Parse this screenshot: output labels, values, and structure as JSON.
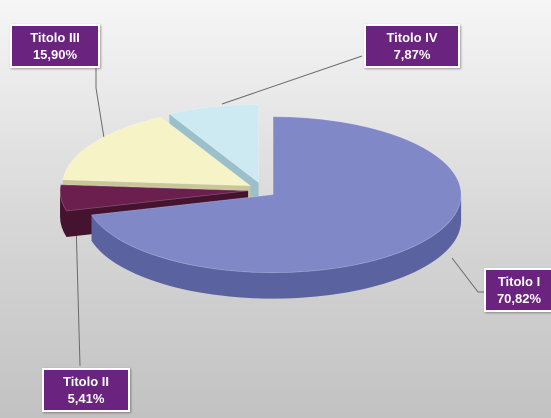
{
  "chart_data": {
    "type": "pie",
    "title": "",
    "slices": [
      {
        "label": "Titolo I",
        "value_label": "70,82%",
        "value": 70.82,
        "color": "#8088c8",
        "side_color": "#5a62a0"
      },
      {
        "label": "Titolo II",
        "value_label": "5,41%",
        "value": 5.41,
        "color": "#6b1f4e",
        "side_color": "#45122f"
      },
      {
        "label": "Titolo III",
        "value_label": "15,90%",
        "value": 15.9,
        "color": "#f6f4c6",
        "side_color": "#c9c69a"
      },
      {
        "label": "Titolo IV",
        "value_label": "7,87%",
        "value": 7.87,
        "color": "#cdeaf2",
        "side_color": "#9cc0cb"
      }
    ],
    "style": "3d-exploded",
    "label_box_color": "#6a237e"
  }
}
